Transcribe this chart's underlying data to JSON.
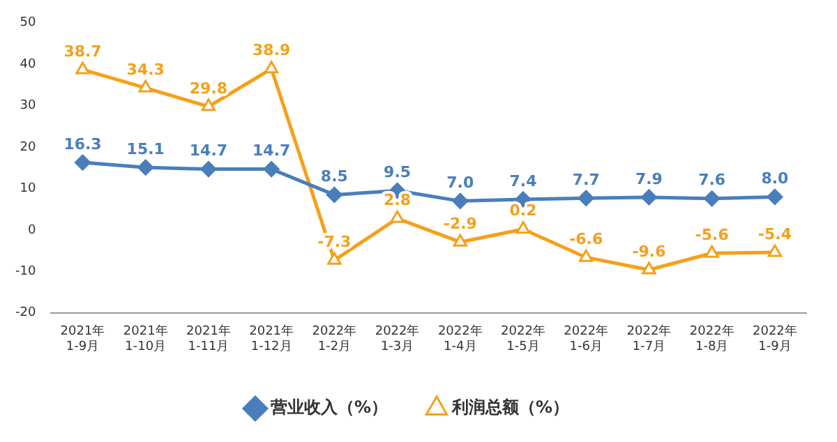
{
  "chart_data": {
    "type": "line",
    "categories": [
      "2021年\n1-9月",
      "2021年\n1-10月",
      "2021年\n1-11月",
      "2021年\n1-12月",
      "2022年\n1-2月",
      "2022年\n1-3月",
      "2022年\n1-4月",
      "2022年\n1-5月",
      "2022年\n1-6月",
      "2022年\n1-7月",
      "2022年\n1-8月",
      "2022年\n1-9月"
    ],
    "series": [
      {
        "name": "营业收入（%）",
        "color": "#4a7ebb",
        "marker": "diamond",
        "values": [
          16.3,
          15.1,
          14.7,
          14.7,
          8.5,
          9.5,
          7.0,
          7.4,
          7.7,
          7.9,
          7.6,
          8.0
        ],
        "value_labels": [
          "16.3",
          "15.1",
          "14.7",
          "14.7",
          "8.5",
          "9.5",
          "7.0",
          "7.4",
          "7.7",
          "7.9",
          "7.6",
          "8.0"
        ]
      },
      {
        "name": "利润总额（%）",
        "color": "#f5a01a",
        "marker": "triangle",
        "values": [
          38.7,
          34.3,
          29.8,
          38.9,
          -7.3,
          2.8,
          -2.9,
          0.2,
          -6.6,
          -9.6,
          -5.6,
          -5.4
        ],
        "value_labels": [
          "38.7",
          "34.3",
          "29.8",
          "38.9",
          "-7.3",
          "2.8",
          "-2.9",
          "0.2",
          "-6.6",
          "-9.6",
          "-5.6",
          "-5.4"
        ]
      }
    ],
    "ylim": [
      -20,
      50
    ],
    "yticks": [
      -20,
      -10,
      0,
      10,
      20,
      30,
      40,
      50
    ],
    "grid": false,
    "legend": "bottom",
    "line_style": "solid"
  }
}
